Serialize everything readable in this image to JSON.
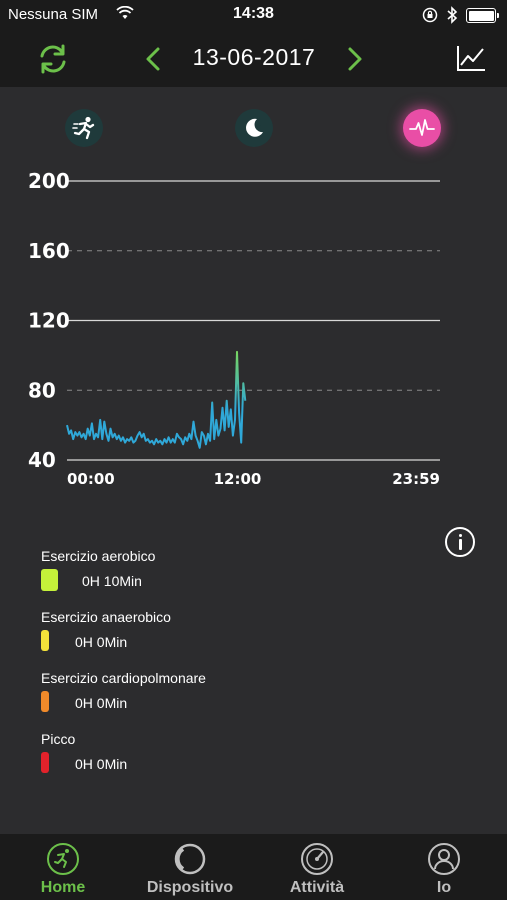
{
  "status_bar": {
    "carrier": "Nessuna SIM",
    "time": "14:38"
  },
  "header": {
    "date": "13-06-2017",
    "prev_icon": "chevron-left-icon",
    "next_icon": "chevron-right-icon",
    "refresh_icon": "refresh-icon",
    "trend_icon": "line-chart-icon"
  },
  "modes": [
    {
      "icon": "running-icon",
      "active": false
    },
    {
      "icon": "moon-icon",
      "active": false
    },
    {
      "icon": "heart-rate-icon",
      "active": true
    }
  ],
  "chart_data": {
    "type": "line",
    "y_ticks": [
      "200",
      "160",
      "120",
      "80",
      "40"
    ],
    "x_ticks": [
      "00:00",
      "12:00",
      "23:59"
    ],
    "ylim": [
      40,
      200
    ],
    "x_range_minutes": [
      0,
      1439
    ],
    "grid": true,
    "series": [
      {
        "color_start": "#2fa8d8",
        "color_end": "#7ed957",
        "points": [
          [
            0,
            60
          ],
          [
            8,
            55
          ],
          [
            16,
            57
          ],
          [
            24,
            52
          ],
          [
            32,
            56
          ],
          [
            40,
            54
          ],
          [
            48,
            56
          ],
          [
            56,
            53
          ],
          [
            64,
            55
          ],
          [
            72,
            52
          ],
          [
            80,
            58
          ],
          [
            88,
            54
          ],
          [
            96,
            61
          ],
          [
            104,
            52
          ],
          [
            112,
            55
          ],
          [
            120,
            53
          ],
          [
            128,
            63
          ],
          [
            136,
            52
          ],
          [
            144,
            62
          ],
          [
            152,
            55
          ],
          [
            160,
            51
          ],
          [
            168,
            58
          ],
          [
            176,
            53
          ],
          [
            184,
            55
          ],
          [
            192,
            52
          ],
          [
            200,
            54
          ],
          [
            208,
            51
          ],
          [
            216,
            53
          ],
          [
            224,
            50
          ],
          [
            232,
            52
          ],
          [
            240,
            51
          ],
          [
            248,
            53
          ],
          [
            256,
            50
          ],
          [
            264,
            51
          ],
          [
            272,
            54
          ],
          [
            280,
            56
          ],
          [
            288,
            53
          ],
          [
            296,
            55
          ],
          [
            304,
            51
          ],
          [
            312,
            52
          ],
          [
            320,
            50
          ],
          [
            328,
            51
          ],
          [
            336,
            49
          ],
          [
            344,
            52
          ],
          [
            352,
            50
          ],
          [
            360,
            51
          ],
          [
            368,
            49
          ],
          [
            376,
            52
          ],
          [
            384,
            50
          ],
          [
            392,
            53
          ],
          [
            400,
            50
          ],
          [
            408,
            52
          ],
          [
            416,
            50
          ],
          [
            424,
            55
          ],
          [
            432,
            53
          ],
          [
            440,
            52
          ],
          [
            448,
            49
          ],
          [
            456,
            53
          ],
          [
            464,
            51
          ],
          [
            472,
            55
          ],
          [
            480,
            52
          ],
          [
            488,
            62
          ],
          [
            496,
            54
          ],
          [
            504,
            51
          ],
          [
            512,
            47
          ],
          [
            520,
            56
          ],
          [
            528,
            54
          ],
          [
            536,
            49
          ],
          [
            544,
            55
          ],
          [
            552,
            51
          ],
          [
            560,
            73
          ],
          [
            568,
            52
          ],
          [
            576,
            63
          ],
          [
            584,
            54
          ],
          [
            592,
            58
          ],
          [
            600,
            70
          ],
          [
            608,
            57
          ],
          [
            616,
            74
          ],
          [
            624,
            59
          ],
          [
            632,
            69
          ],
          [
            640,
            54
          ],
          [
            648,
            63
          ],
          [
            656,
            102
          ],
          [
            664,
            67
          ],
          [
            672,
            50
          ],
          [
            680,
            84
          ],
          [
            688,
            74
          ]
        ]
      }
    ]
  },
  "legend": [
    {
      "title": "Esercizio aerobico",
      "value": "0H 10Min",
      "color": "#c5f13a"
    },
    {
      "title": "Esercizio anaerobico",
      "value": "0H 0Min",
      "color": "#f4e23a"
    },
    {
      "title": "Esercizio cardiopolmonare",
      "value": "0H 0Min",
      "color": "#f08a2a"
    },
    {
      "title": "Picco",
      "value": "0H 0Min",
      "color": "#e2222b"
    }
  ],
  "tabs": [
    {
      "label": "Home",
      "icon": "running-icon",
      "active": true
    },
    {
      "label": "Dispositivo",
      "icon": "device-icon",
      "active": false
    },
    {
      "label": "Attività",
      "icon": "dashboard-icon",
      "active": false
    },
    {
      "label": "Io",
      "icon": "user-icon",
      "active": false
    }
  ],
  "colors": {
    "accent": "#6cc04a",
    "panel": "#2c2c2e",
    "bar": "#1b1b1b",
    "heart_active": "#e94ea6"
  }
}
